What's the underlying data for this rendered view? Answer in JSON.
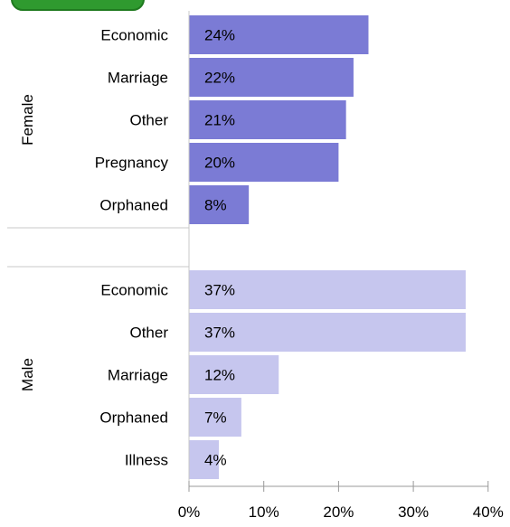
{
  "colors": {
    "female_bar": "#7b7bd5",
    "male_bar": "#c6c6ee",
    "gridline": "#c8c8c8",
    "axis": "#999999",
    "text": "#000000"
  },
  "chart_data": {
    "type": "bar",
    "orientation": "horizontal",
    "value_format": "percent",
    "xlim": [
      0,
      40
    ],
    "x_ticks": [
      "0%",
      "10%",
      "20%",
      "30%",
      "40%"
    ],
    "groups": [
      {
        "name": "Female",
        "color": "#7b7bd5",
        "categories": [
          "Economic",
          "Marriage",
          "Other",
          "Pregnancy",
          "Orphaned"
        ],
        "values": [
          24,
          22,
          21,
          20,
          8
        ],
        "labels": [
          "24%",
          "22%",
          "21%",
          "20%",
          "8%"
        ]
      },
      {
        "name": "Male",
        "color": "#c6c6ee",
        "categories": [
          "Economic",
          "Other",
          "Marriage",
          "Orphaned",
          "Illness"
        ],
        "values": [
          37,
          37,
          12,
          7,
          4
        ],
        "labels": [
          "37%",
          "37%",
          "12%",
          "7%",
          "4%"
        ]
      }
    ],
    "grid": false,
    "legend": "top-left"
  }
}
